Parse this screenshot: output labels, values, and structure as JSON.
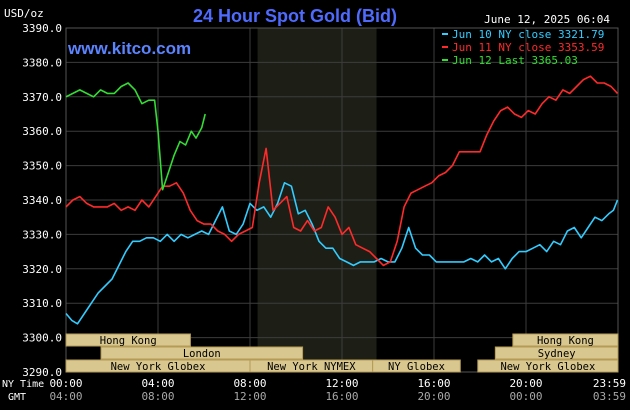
{
  "header": {
    "title": "24 Hour Spot Gold (Bid)",
    "timestamp": "June 12, 2025 06:04",
    "y_unit": "USD/oz",
    "site": "www.kitco.com"
  },
  "legend": {
    "items": [
      {
        "label": "Jun 10 NY close 3321.79",
        "color": "#33ccff"
      },
      {
        "label": "Jun 11 NY close 3353.59",
        "color": "#ff2a2a"
      },
      {
        "label": "Jun 12 Last 3365.03",
        "color": "#33dd33"
      }
    ]
  },
  "colors": {
    "background": "#000000",
    "grid": "#3c3c3c",
    "title": "#4f6bff",
    "site": "#5b84ff",
    "session_fill": "#d8c78e",
    "session_border": "#b59b55",
    "nymex_shade": "#1d1f17"
  },
  "axis": {
    "y_ticks": [
      "3390.0",
      "3380.0",
      "3370.0",
      "3360.0",
      "3350.0",
      "3340.0",
      "3330.0",
      "3320.0",
      "3310.0",
      "3300.0",
      "3290.0"
    ],
    "x_label_ny": "NY Time",
    "x_label_gmt": "GMT",
    "x_ticks_ny": [
      "00:00",
      "04:00",
      "08:00",
      "12:00",
      "16:00",
      "20:00",
      "23:59"
    ],
    "x_ticks_gmt": [
      "04:00",
      "08:00",
      "12:00",
      "16:00",
      "20:00",
      "00:00",
      "03:59"
    ]
  },
  "sessions": [
    {
      "label": "Hong Kong",
      "start": 0,
      "end": 7.1,
      "row": 0
    },
    {
      "label": "London",
      "start": 2,
      "end": 13.5,
      "row": 1
    },
    {
      "label": "New York Globex",
      "start": 0,
      "end": 10.5,
      "row": 2
    },
    {
      "label": "New York NYMEX",
      "start": 10.5,
      "end": 17.5,
      "row": 2
    },
    {
      "label": "NY Globex",
      "start": 17.5,
      "end": 22.5,
      "row": 2
    },
    {
      "label": "Hong Kong",
      "start": 25.5,
      "end": 31.5,
      "row": 0
    },
    {
      "label": "Sydney",
      "start": 24.5,
      "end": 31.5,
      "row": 1
    },
    {
      "label": "New York Globex",
      "start": 23.5,
      "end": 31.5,
      "row": 2
    }
  ],
  "chart_data": {
    "type": "line",
    "title": "24 Hour Spot Gold (Bid)",
    "ylabel": "USD/oz",
    "xlabel": "NY Time",
    "xlim": [
      0,
      24
    ],
    "ylim": [
      3290,
      3390
    ],
    "grid": true,
    "legend_position": "top-right",
    "nymex_shade": [
      8.33,
      13.5
    ],
    "series": [
      {
        "name": "Jun 10 NY close 3321.79",
        "color": "#33ccff",
        "x": [
          0,
          0.25,
          0.5,
          0.8,
          1.1,
          1.4,
          1.7,
          2.0,
          2.3,
          2.6,
          2.9,
          3.2,
          3.5,
          3.8,
          4.1,
          4.4,
          4.7,
          5.0,
          5.3,
          5.6,
          5.9,
          6.2,
          6.5,
          6.8,
          7.1,
          7.4,
          7.7,
          8.0,
          8.3,
          8.6,
          8.9,
          9.2,
          9.5,
          9.8,
          10.1,
          10.4,
          10.7,
          11.0,
          11.3,
          11.6,
          11.9,
          12.2,
          12.5,
          12.8,
          13.1,
          13.4,
          13.7,
          14.0,
          14.3,
          14.6,
          14.9,
          15.2,
          15.5,
          15.8,
          16.1,
          16.4,
          16.7,
          17.0,
          17.3,
          17.6,
          17.9,
          18.2,
          18.5,
          18.8,
          19.1,
          19.4,
          19.7,
          20.0,
          20.3,
          20.6,
          20.9,
          21.2,
          21.5,
          21.8,
          22.1,
          22.4,
          22.7,
          23.0,
          23.3,
          23.6,
          23.8,
          23.98
        ],
        "values": [
          3307,
          3305,
          3304,
          3307,
          3310,
          3313,
          3315,
          3317,
          3321,
          3325,
          3328,
          3328,
          3329,
          3329,
          3328,
          3330,
          3328,
          3330,
          3329,
          3330,
          3331,
          3330,
          3334,
          3338,
          3331,
          3330,
          3333,
          3339,
          3337,
          3338,
          3335,
          3339,
          3345,
          3344,
          3336,
          3337,
          3333,
          3328,
          3326,
          3326,
          3323,
          3322,
          3321,
          3322,
          3322,
          3322,
          3323,
          3322,
          3322,
          3326,
          3332,
          3326,
          3324,
          3324,
          3322,
          3322,
          3322,
          3322,
          3322,
          3323,
          3322,
          3324,
          3322,
          3323,
          3320,
          3323,
          3325,
          3325,
          3326,
          3327,
          3325,
          3328,
          3327,
          3331,
          3332,
          3329,
          3332,
          3335,
          3334,
          3336,
          3337,
          3340
        ]
      },
      {
        "name": "Jun 11 NY close 3353.59",
        "color": "#ff2a2a",
        "x": [
          0,
          0.3,
          0.6,
          0.9,
          1.2,
          1.5,
          1.8,
          2.1,
          2.4,
          2.7,
          3.0,
          3.3,
          3.6,
          3.9,
          4.2,
          4.5,
          4.8,
          5.1,
          5.4,
          5.7,
          6.0,
          6.3,
          6.6,
          6.9,
          7.2,
          7.5,
          7.8,
          8.1,
          8.4,
          8.7,
          9.0,
          9.3,
          9.6,
          9.9,
          10.2,
          10.5,
          10.8,
          11.1,
          11.4,
          11.7,
          12.0,
          12.3,
          12.6,
          12.9,
          13.2,
          13.5,
          13.8,
          14.1,
          14.4,
          14.7,
          15.0,
          15.3,
          15.6,
          15.9,
          16.2,
          16.5,
          16.8,
          17.1,
          17.4,
          17.7,
          18.0,
          18.3,
          18.6,
          18.9,
          19.2,
          19.5,
          19.8,
          20.1,
          20.4,
          20.7,
          21.0,
          21.3,
          21.6,
          21.9,
          22.2,
          22.5,
          22.8,
          23.1,
          23.4,
          23.7,
          23.98
        ],
        "values": [
          3338,
          3340,
          3341,
          3339,
          3338,
          3338,
          3338,
          3339,
          3337,
          3338,
          3337,
          3340,
          3338,
          3341,
          3344,
          3344,
          3345,
          3342,
          3337,
          3334,
          3333,
          3333,
          3331,
          3330,
          3328,
          3330,
          3331,
          3332,
          3345,
          3355,
          3337,
          3339,
          3341,
          3332,
          3331,
          3334,
          3331,
          3332,
          3338,
          3335,
          3330,
          3332,
          3327,
          3326,
          3325,
          3323,
          3321,
          3322,
          3328,
          3338,
          3342,
          3343,
          3344,
          3345,
          3347,
          3348,
          3350,
          3354,
          3354,
          3354,
          3354,
          3359,
          3363,
          3366,
          3367,
          3365,
          3364,
          3366,
          3365,
          3368,
          3370,
          3369,
          3372,
          3371,
          3373,
          3375,
          3376,
          3374,
          3374,
          3373,
          3371
        ]
      },
      {
        "name": "Jun 12 Last 3365.03",
        "color": "#33dd33",
        "x": [
          0,
          0.3,
          0.6,
          0.9,
          1.2,
          1.5,
          1.8,
          2.1,
          2.4,
          2.7,
          3.0,
          3.3,
          3.6,
          3.85,
          4.0,
          4.2,
          4.45,
          4.7,
          4.95,
          5.2,
          5.45,
          5.65,
          5.9,
          6.05
        ],
        "values": [
          3370,
          3371,
          3372,
          3371,
          3370,
          3372,
          3371,
          3371,
          3373,
          3374,
          3372,
          3368,
          3369,
          3369,
          3360,
          3343,
          3348,
          3353,
          3357,
          3356,
          3360,
          3358,
          3361,
          3365
        ]
      }
    ]
  }
}
